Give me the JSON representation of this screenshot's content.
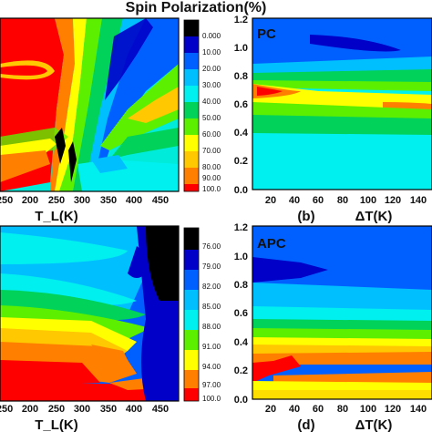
{
  "figure": {
    "title": "Spin Polarization(%)"
  },
  "colors": {
    "levels": [
      "#ff0000",
      "#ff7f00",
      "#ffc800",
      "#ffff00",
      "#bfff00",
      "#5cf000",
      "#00d25a",
      "#00f0f0",
      "#00bfff",
      "#0060ff",
      "#0000c8",
      "#000000"
    ]
  },
  "chart_data": [
    {
      "id": "a",
      "type": "heatmap",
      "label": "",
      "xlabel": "T_L(K)",
      "ylabel": "",
      "xticks": [
        "250",
        "200",
        "250",
        "300",
        "350",
        "400",
        "450"
      ],
      "colorbar": {
        "ticks": [
          "100.0",
          "90.00",
          "80.00",
          "70.00",
          "60.00",
          "50.00",
          "40.00",
          "30.00",
          "20.00",
          "10.00",
          "0.000"
        ]
      }
    },
    {
      "id": "b",
      "type": "heatmap",
      "label": "(b)",
      "inner_label": "PC",
      "xlabel": "ΔT(K)",
      "yticks": [
        "0.0",
        "0.2",
        "0.4",
        "0.6",
        "0.8",
        "1.0",
        "1.2"
      ],
      "xticks": [
        "20",
        "40",
        "60",
        "80",
        "100",
        "120",
        "140"
      ]
    },
    {
      "id": "c",
      "type": "heatmap",
      "label": "",
      "xlabel": "T_L(K)",
      "xticks": [
        "250",
        "200",
        "250",
        "300",
        "350",
        "400",
        "450"
      ],
      "colorbar": {
        "ticks": [
          "100.0",
          "97.00",
          "94.00",
          "91.00",
          "88.00",
          "85.00",
          "82.00",
          "79.00",
          "76.00"
        ]
      }
    },
    {
      "id": "d",
      "type": "heatmap",
      "label": "(d)",
      "inner_label": "APC",
      "xlabel": "ΔT(K)",
      "yticks": [
        "0.0",
        "0.2",
        "0.4",
        "0.6",
        "0.8",
        "1.0",
        "1.2"
      ],
      "xticks": [
        "20",
        "40",
        "60",
        "80",
        "100",
        "120",
        "140"
      ]
    }
  ]
}
